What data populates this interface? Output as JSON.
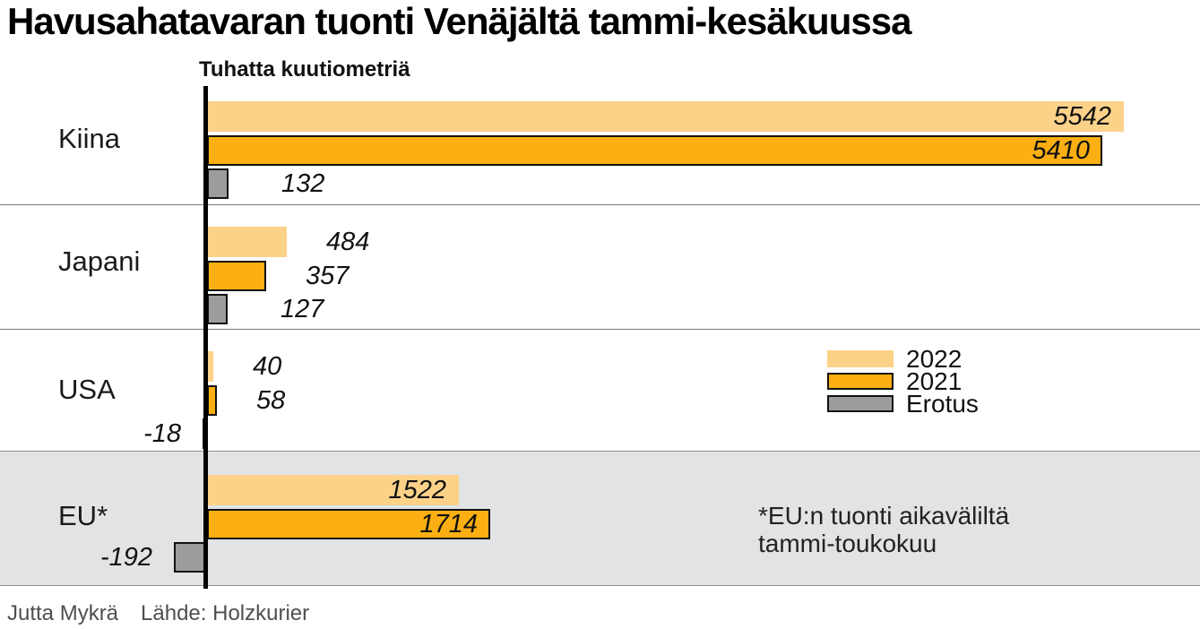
{
  "title": "Havusahatavaran tuonti Venäjältä tammi-kesäkuussa",
  "chart_data": {
    "type": "bar",
    "orientation": "horizontal",
    "title": "Havusahatavaran tuonti Venäjältä tammi-kesäkuussa",
    "unit_label": "Tuhatta kuutiometriä",
    "categories": [
      "Kiina",
      "Japani",
      "USA",
      "EU*"
    ],
    "series": [
      {
        "name": "2022",
        "color": "#FCD289",
        "bordered": false,
        "values": [
          5542,
          484,
          40,
          1522
        ]
      },
      {
        "name": "2021",
        "color": "#FBAF12",
        "bordered": true,
        "values": [
          5410,
          357,
          58,
          1714
        ]
      },
      {
        "name": "Erotus",
        "color": "#9C9C9C",
        "bordered": true,
        "values": [
          132,
          127,
          -18,
          -192
        ]
      }
    ],
    "xlim": [
      -250,
      6050
    ],
    "grid": false,
    "value_labels": true,
    "legend_position": "middle-right",
    "highlighted_category": "EU*"
  },
  "legend": {
    "items": [
      "2022",
      "2021",
      "Erotus"
    ]
  },
  "annotation": {
    "line1": "*EU:n tuonti aikaväliltä",
    "line2": "tammi-toukokuu"
  },
  "footer": {
    "author": "Jutta Mykrä",
    "source": "Lähde: Holzkurier"
  },
  "colors": {
    "bar_2022": "#FCD289",
    "bar_2021": "#FBAF12",
    "bar_erotus": "#9C9C9C",
    "eu_band_background": "#E2E3E4",
    "bar_border": "#111111",
    "axis": "#000000",
    "divider": "#7E7E7E",
    "footer_text": "#4F4F4F"
  }
}
